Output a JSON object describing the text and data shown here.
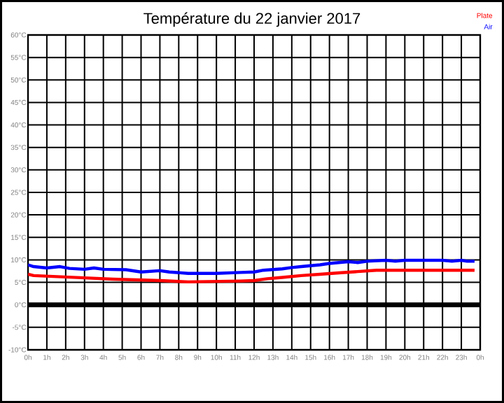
{
  "chart_data": {
    "type": "line",
    "title": "Température du 22 janvier 2017",
    "x": [
      "2017-01-22T00:00",
      "2017-01-22T00:18",
      "2017-01-22T01:00",
      "2017-01-22T01:42",
      "2017-01-22T02:12",
      "2017-01-22T03:00",
      "2017-01-22T03:30",
      "2017-01-22T04:00",
      "2017-01-22T05:12",
      "2017-01-22T06:00",
      "2017-01-22T07:00",
      "2017-01-22T07:30",
      "2017-01-22T08:30",
      "2017-01-22T10:00",
      "2017-01-22T11:18",
      "2017-01-22T12:00",
      "2017-01-22T12:30",
      "2017-01-22T13:30",
      "2017-01-22T14:00",
      "2017-01-22T14:30",
      "2017-01-22T15:30",
      "2017-01-22T16:00",
      "2017-01-22T17:00",
      "2017-01-22T17:30",
      "2017-01-22T18:00",
      "2017-01-22T19:00",
      "2017-01-22T19:30",
      "2017-01-22T20:00",
      "2017-01-22T22:00",
      "2017-01-22T22:30",
      "2017-01-22T23:00",
      "2017-01-22T23:18",
      "2017-01-22T23:42"
    ],
    "series": [
      {
        "name": "Plate",
        "color": "#ff0000",
        "x": [
          "2017-01-22T00:00",
          "2017-01-22T00:18",
          "2017-01-22T03:00",
          "2017-01-22T04:30",
          "2017-01-22T07:00",
          "2017-01-22T08:30",
          "2017-01-22T11:18",
          "2017-01-22T12:00",
          "2017-01-22T12:42",
          "2017-01-22T13:30",
          "2017-01-22T14:30",
          "2017-01-22T15:30",
          "2017-01-22T16:30",
          "2017-01-22T17:30",
          "2017-01-22T18:30",
          "2017-01-22T23:42"
        ],
        "values": [
          6.8,
          6.5,
          6.0,
          5.7,
          5.4,
          5.1,
          5.3,
          5.4,
          5.8,
          6.1,
          6.5,
          6.8,
          7.1,
          7.4,
          7.7,
          7.7
        ]
      },
      {
        "name": "Air",
        "color": "#0000ff",
        "values": [
          8.9,
          8.5,
          8.2,
          8.5,
          8.1,
          7.9,
          8.2,
          7.9,
          7.8,
          7.3,
          7.6,
          7.3,
          7.0,
          7.0,
          7.2,
          7.3,
          7.7,
          8.0,
          8.3,
          8.5,
          8.9,
          9.2,
          9.6,
          9.4,
          9.7,
          9.9,
          9.7,
          9.9,
          9.9,
          9.7,
          9.9,
          9.7,
          9.7
        ]
      }
    ],
    "xlim": [
      "2017-01-22T00:00",
      "2017-01-23T00:00"
    ],
    "xticks": [
      {
        "value": "2017-01-22T00:00",
        "label": "0h"
      },
      {
        "value": "2017-01-22T01:00",
        "label": "1h"
      },
      {
        "value": "2017-01-22T02:00",
        "label": "2h"
      },
      {
        "value": "2017-01-22T03:00",
        "label": "3h"
      },
      {
        "value": "2017-01-22T04:00",
        "label": "4h"
      },
      {
        "value": "2017-01-22T05:00",
        "label": "5h"
      },
      {
        "value": "2017-01-22T06:00",
        "label": "6h"
      },
      {
        "value": "2017-01-22T07:00",
        "label": "7h"
      },
      {
        "value": "2017-01-22T08:00",
        "label": "8h"
      },
      {
        "value": "2017-01-22T09:00",
        "label": "9h"
      },
      {
        "value": "2017-01-22T10:00",
        "label": "10h"
      },
      {
        "value": "2017-01-22T11:00",
        "label": "11h"
      },
      {
        "value": "2017-01-22T12:00",
        "label": "12h"
      },
      {
        "value": "2017-01-22T13:00",
        "label": "13h"
      },
      {
        "value": "2017-01-22T14:00",
        "label": "14h"
      },
      {
        "value": "2017-01-22T15:00",
        "label": "15h"
      },
      {
        "value": "2017-01-22T16:00",
        "label": "16h"
      },
      {
        "value": "2017-01-22T17:00",
        "label": "17h"
      },
      {
        "value": "2017-01-22T18:00",
        "label": "18h"
      },
      {
        "value": "2017-01-22T19:00",
        "label": "19h"
      },
      {
        "value": "2017-01-22T20:00",
        "label": "20h"
      },
      {
        "value": "2017-01-22T21:00",
        "label": "21h"
      },
      {
        "value": "2017-01-22T22:00",
        "label": "22h"
      },
      {
        "value": "2017-01-22T23:00",
        "label": "23h"
      },
      {
        "value": "2017-01-23T00:00",
        "label": "0h"
      }
    ],
    "ylim": [
      -10,
      60
    ],
    "yticks": [
      {
        "value": -10,
        "label": "-10°C"
      },
      {
        "value": -5,
        "label": "-5°C"
      },
      {
        "value": 0,
        "label": "0°C"
      },
      {
        "value": 5,
        "label": "5°C"
      },
      {
        "value": 10,
        "label": "10°C"
      },
      {
        "value": 15,
        "label": "15°C"
      },
      {
        "value": 20,
        "label": "20°C"
      },
      {
        "value": 25,
        "label": "25°C"
      },
      {
        "value": 30,
        "label": "30°C"
      },
      {
        "value": 35,
        "label": "35°C"
      },
      {
        "value": 40,
        "label": "40°C"
      },
      {
        "value": 45,
        "label": "45°C"
      },
      {
        "value": 50,
        "label": "50°C"
      },
      {
        "value": 55,
        "label": "55°C"
      },
      {
        "value": 60,
        "label": "60°C"
      }
    ],
    "ref_lines": [
      {
        "axis": "y",
        "value": 0,
        "color": "#000000"
      }
    ],
    "grid": true,
    "legend": "top right",
    "marker": "none",
    "line_style": "solid"
  }
}
